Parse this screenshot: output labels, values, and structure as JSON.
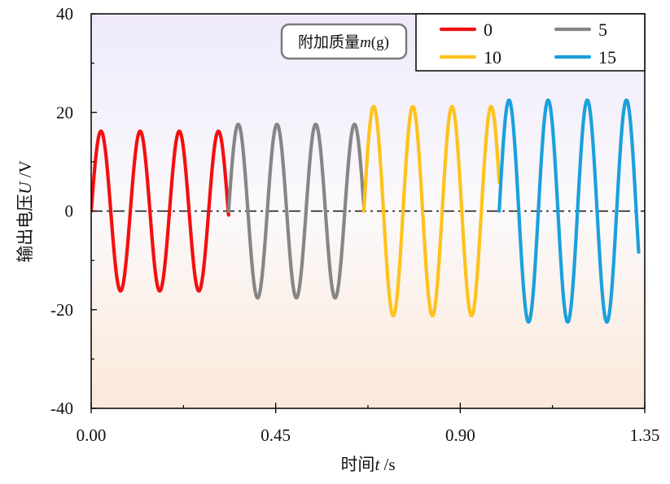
{
  "chart_data": {
    "type": "line",
    "xlabel": {
      "main": "时间",
      "var": "t",
      "unit": " /s"
    },
    "ylabel": {
      "main": "输出电压",
      "var": "U",
      "unit": " /V"
    },
    "xlim": [
      0,
      1.35
    ],
    "ylim": [
      -40,
      40
    ],
    "x_ticks": [
      0,
      0.45,
      0.9,
      1.35
    ],
    "x_tick_labels": [
      "0.00",
      "0.45",
      "0.90",
      "1.35"
    ],
    "y_ticks": [
      40,
      20,
      0,
      -20,
      -40
    ],
    "y_tick_labels": [
      "40",
      "20",
      "0",
      "-20",
      "-40"
    ],
    "grid": false,
    "reference_line": {
      "y": 0,
      "style": "dash-dot"
    },
    "annotation": {
      "main": "附加质量",
      "var": "m",
      "unit": "(g)"
    },
    "legend": {
      "placement": "top-right",
      "columns": 2
    },
    "series": [
      {
        "name": "0",
        "color": "#f21010",
        "x_start": 0.0,
        "x_end": 0.335,
        "amplitude": 16.2,
        "period": 0.0955,
        "peaks": [
          16,
          16,
          15.7,
          15.9
        ],
        "troughs": [
          -16.3,
          -16.1,
          -16.1
        ]
      },
      {
        "name": "5",
        "color": "#868686",
        "x_start": 0.335,
        "x_end": 0.665,
        "amplitude": 17.6,
        "period": 0.0945,
        "peaks": [
          17.7,
          17.5,
          17.5
        ],
        "troughs": [
          -17.6,
          -17.7,
          -17.6,
          -17.4
        ]
      },
      {
        "name": "10",
        "color": "#fec21c",
        "x_start": 0.665,
        "x_end": 0.995,
        "amplitude": 21.2,
        "period": 0.0955,
        "peaks": [
          21.3,
          21.3,
          20.8,
          21.1
        ],
        "troughs": [
          -21.3,
          -20.9,
          -20.8
        ]
      },
      {
        "name": "15",
        "color": "#1ba0dc",
        "x_start": 0.995,
        "x_end": 1.335,
        "amplitude": 22.5,
        "period": 0.0955,
        "peaks": [
          22.7,
          22.4,
          22.3
        ],
        "troughs": [
          -22.5,
          -22.7,
          -22.3,
          -22.6
        ]
      }
    ]
  }
}
